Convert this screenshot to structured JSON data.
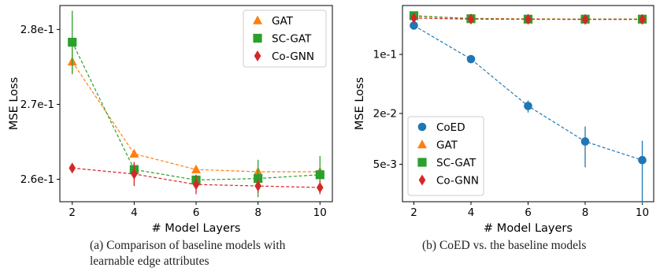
{
  "chart_data": [
    {
      "type": "line",
      "panel_label": "(a) Comparison of baseline models with learnable edge attributes",
      "xlabel": "# Model Layers",
      "ylabel": "MSE Loss",
      "x": [
        2,
        4,
        6,
        8,
        10
      ],
      "xlim": [
        1.6,
        10.4
      ],
      "ylim": [
        0.257,
        0.2832
      ],
      "yscale": "linear",
      "yticks": [
        0.26,
        0.27,
        0.28
      ],
      "ytick_labels": [
        "2.6e-1",
        "2.7e-1",
        "2.8e-1"
      ],
      "legend": "upper right",
      "grid": false,
      "series": [
        {
          "name": "GAT",
          "color": "#ff7f0e",
          "marker": "triangle",
          "values": [
            0.2757,
            0.2634,
            0.2613,
            0.261,
            0.261
          ],
          "err": [
            0.0017,
            0.0004,
            0.0002,
            0.0002,
            0.0002
          ]
        },
        {
          "name": "SC-GAT",
          "color": "#2ca02c",
          "marker": "square",
          "values": [
            0.2783,
            0.2613,
            0.2599,
            0.2601,
            0.2606
          ],
          "err": [
            0.0042,
            0.0009,
            0.0007,
            0.0025,
            0.0025
          ]
        },
        {
          "name": "Co-GNN",
          "color": "#d62728",
          "marker": "diamond",
          "values": [
            0.2615,
            0.2607,
            0.2593,
            0.2591,
            0.2589
          ],
          "err": [
            0.0002,
            0.0016,
            0.0013,
            0.0009,
            0.0009
          ]
        }
      ]
    },
    {
      "type": "line",
      "panel_label": "(b) CoED vs. the baseline models",
      "xlabel": "# Model Layers",
      "ylabel": "MSE Loss",
      "x": [
        2,
        4,
        6,
        8,
        10
      ],
      "xlim": [
        1.6,
        10.4
      ],
      "ylim": [
        0.0018,
        0.38
      ],
      "yscale": "log",
      "yticks": [
        0.1,
        0.02,
        0.005
      ],
      "ytick_labels": [
        "1e-1",
        "2e-2",
        "5e-3"
      ],
      "legend": "lower left",
      "grid": false,
      "series": [
        {
          "name": "CoED",
          "color": "#1f77b4",
          "marker": "circle",
          "values": [
            0.22,
            0.088,
            0.0245,
            0.0093,
            0.0056
          ],
          "err_lo": [
            0.01,
            0.004,
            0.004,
            0.0047,
            0.0039
          ],
          "err_hi": [
            0.012,
            0.004,
            0.004,
            0.0047,
            0.0039
          ]
        },
        {
          "name": "GAT",
          "color": "#ff7f0e",
          "marker": "triangle",
          "values": [
            0.283,
            0.268,
            0.264,
            0.263,
            0.263
          ],
          "err_lo": [
            0.004,
            0.002,
            0.001,
            0.001,
            0.001
          ],
          "err_hi": [
            0.004,
            0.002,
            0.001,
            0.001,
            0.001
          ]
        },
        {
          "name": "SC-GAT",
          "color": "#2ca02c",
          "marker": "square",
          "values": [
            0.288,
            0.265,
            0.262,
            0.262,
            0.262
          ],
          "err_lo": [
            0.004,
            0.002,
            0.001,
            0.001,
            0.001
          ],
          "err_hi": [
            0.004,
            0.002,
            0.001,
            0.001,
            0.001
          ]
        },
        {
          "name": "Co-GNN",
          "color": "#d62728",
          "marker": "diamond",
          "values": [
            0.27,
            0.262,
            0.261,
            0.26,
            0.26
          ],
          "err_lo": [
            0.002,
            0.002,
            0.001,
            0.001,
            0.001
          ],
          "err_hi": [
            0.002,
            0.002,
            0.001,
            0.001,
            0.001
          ]
        }
      ]
    }
  ]
}
